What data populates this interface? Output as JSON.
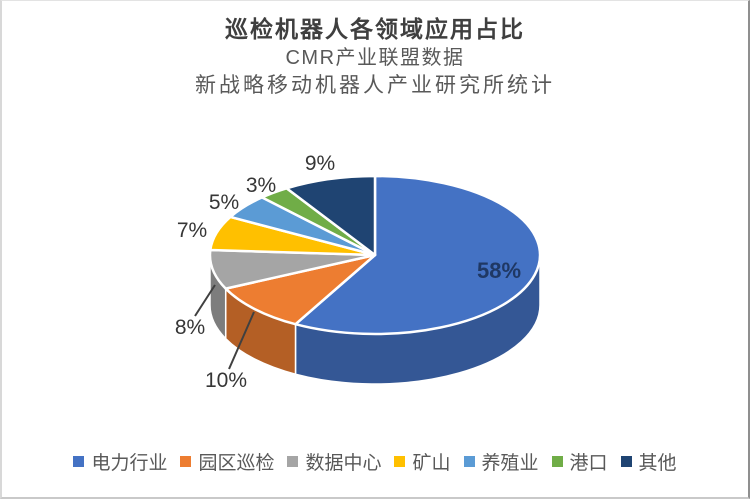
{
  "chart_data": {
    "type": "pie",
    "style": "3d",
    "title": "巡检机器人各领域应用占比",
    "subtitle": [
      "CMR产业联盟数据",
      "新战略移动机器人产业研究所统计"
    ],
    "categories": [
      "电力行业",
      "园区巡检",
      "数据中心",
      "矿山",
      "养殖业",
      "港口",
      "其他"
    ],
    "values": [
      58,
      10,
      8,
      7,
      5,
      3,
      9
    ],
    "labels": [
      "58%",
      "10%",
      "8%",
      "7%",
      "5%",
      "3%",
      "9%"
    ],
    "colors": [
      "#4472C4",
      "#ED7D31",
      "#A5A5A5",
      "#FFC000",
      "#5B9BD5",
      "#70AD47",
      "#1F4472"
    ],
    "label_color_inside": "#1F3864",
    "label_color_outside": "#363636",
    "leader_line_color": "#404040",
    "legend_position": "bottom",
    "legend_text_color": "#595959",
    "start_angle": 0,
    "direction": "clockwise"
  }
}
